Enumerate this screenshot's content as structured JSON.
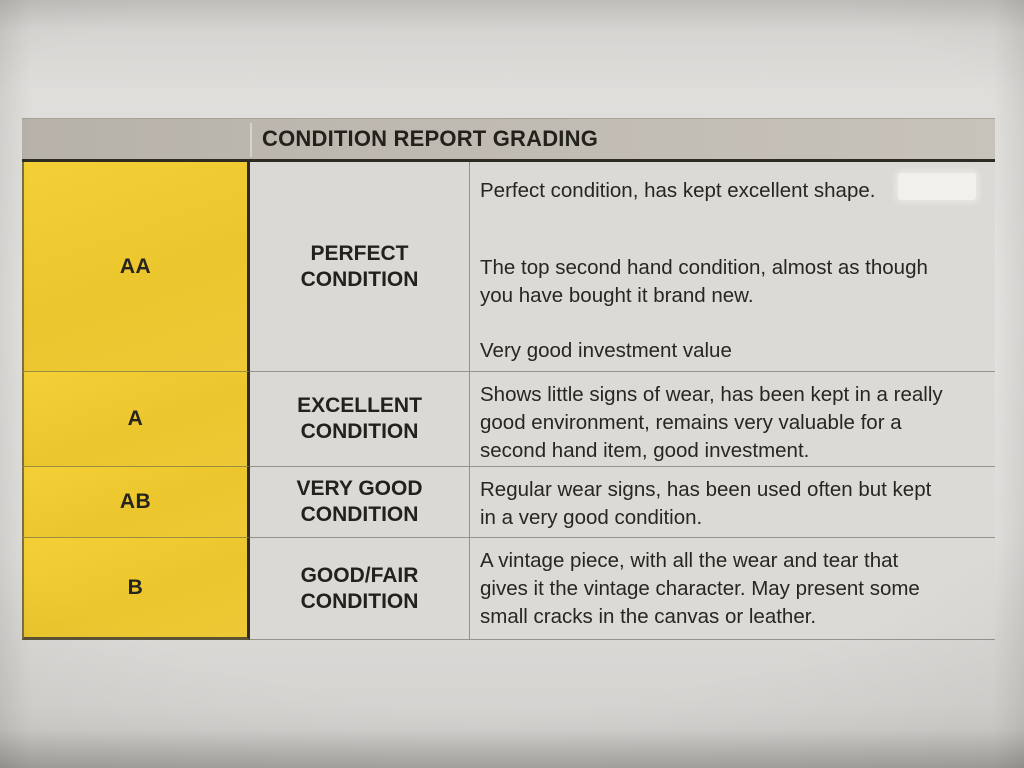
{
  "document": {
    "kind": "photographed printed table",
    "paper_color": "#e0dedb"
  },
  "table": {
    "header": {
      "title": "CONDITION REPORT GRADING",
      "background": "#bfbab2"
    },
    "grade_column_color": "#edc72f",
    "text_color": "#28261f",
    "rows": [
      {
        "code": "AA",
        "label": "PERFECT CONDITION",
        "descriptions": [
          "Perfect condition, has kept excellent shape.",
          "The top second hand condition, almost as though you have bought it brand new.",
          "Very good investment value"
        ]
      },
      {
        "code": "A",
        "label": "EXCELLENT CONDITION",
        "descriptions": [
          "Shows little signs of wear, has been kept in a really good environment, remains very valuable for a second hand item, good investment."
        ]
      },
      {
        "code": "AB",
        "label": "VERY GOOD CONDITION",
        "descriptions": [
          "Regular wear signs, has been used often but kept in a very good condition."
        ]
      },
      {
        "code": "B",
        "label": "GOOD/FAIR CONDITION",
        "descriptions": [
          "A vintage piece, with all the wear and tear that gives it the vintage character. May present some small cracks in the canvas or leather."
        ]
      }
    ]
  }
}
